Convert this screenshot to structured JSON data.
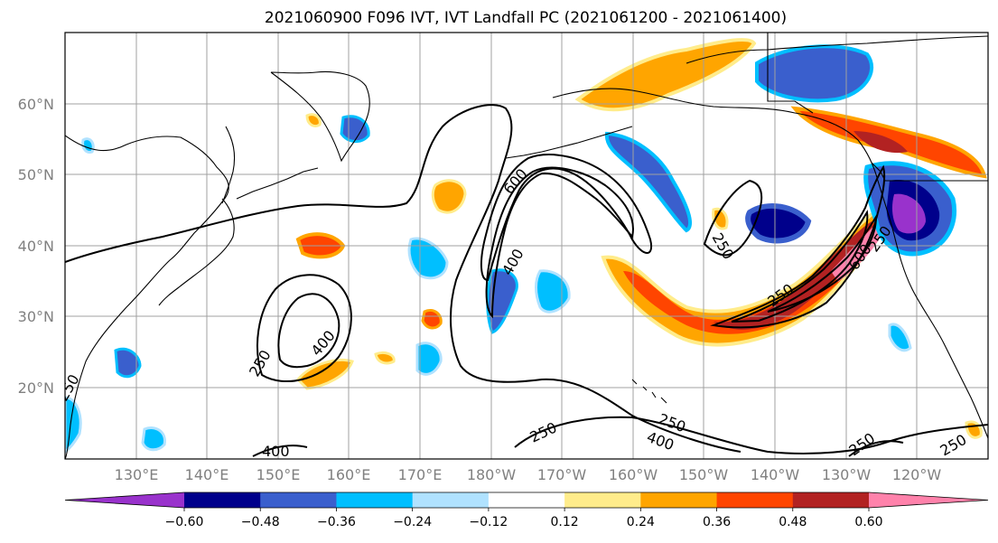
{
  "figure": {
    "title": "2021060900 F096 IVT, IVT Landfall PC (2021061200 - 2021061400)"
  },
  "map": {
    "projection": "PlateCarree (central lon 180)",
    "lon_range_east": [
      120,
      250
    ],
    "lat_range": [
      10,
      70
    ],
    "grid": true,
    "lon_ticks": [
      130,
      140,
      150,
      160,
      170,
      180,
      190,
      200,
      210,
      220,
      230,
      240
    ],
    "lon_tick_labels": [
      "130°E",
      "140°E",
      "150°E",
      "160°E",
      "170°E",
      "180°W",
      "170°W",
      "160°W",
      "150°W",
      "140°W",
      "130°W",
      "120°W"
    ],
    "lat_ticks": [
      20,
      30,
      40,
      50,
      60
    ],
    "lat_tick_labels": [
      "20°N",
      "30°N",
      "40°N",
      "50°N",
      "60°N"
    ]
  },
  "chart_data": {
    "type": "heatmap",
    "title": "2021060900 F096 IVT, IVT Landfall PC (2021061200 - 2021061400)",
    "colorbar": {
      "levels": [
        -0.6,
        -0.48,
        -0.36,
        -0.24,
        -0.12,
        0.12,
        0.24,
        0.36,
        0.48,
        0.6
      ],
      "tick_labels": [
        "−0.60",
        "−0.48",
        "−0.36",
        "−0.24",
        "−0.12",
        "0.12",
        "0.24",
        "0.36",
        "0.48",
        "0.60"
      ],
      "colors": [
        "#9932CC",
        "#00008B",
        "#3A5FCD",
        "#00BFFF",
        "#B0E2FF",
        "#FFFFFF",
        "#FFEC8B",
        "#FFA500",
        "#FF4500",
        "#B22222",
        "#FF82AB"
      ],
      "extend": "both"
    },
    "contour_labels": [
      "600",
      "400",
      "400",
      "400",
      "250",
      "250",
      "250",
      "250",
      "250",
      "250",
      "400",
      "250",
      "250",
      "600",
      "250"
    ]
  }
}
